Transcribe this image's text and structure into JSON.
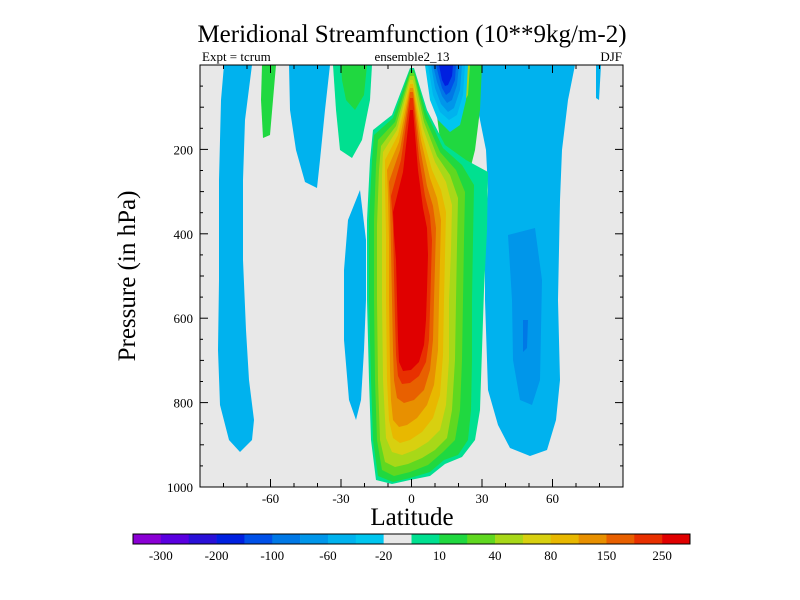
{
  "chart_data": {
    "type": "contour",
    "title": "Meridional Streamfunction (10**9kg/m-2)",
    "subtitle_left": "Expt = tcrum",
    "subtitle_center": "ensemble2_13",
    "subtitle_right": "DJF",
    "xlabel": "Latitude",
    "ylabel": "Pressure (in hPa)",
    "xlim": [
      -90,
      90
    ],
    "ylim": [
      1000,
      0
    ],
    "x_ticks": [
      -60,
      -30,
      0,
      30,
      60
    ],
    "y_ticks": [
      200,
      400,
      600,
      800,
      1000
    ],
    "colorbar": {
      "levels": [
        -300,
        -250,
        -200,
        -150,
        -100,
        -80,
        -60,
        -40,
        -20,
        -10,
        10,
        20,
        40,
        60,
        80,
        100,
        150,
        200,
        250,
        300
      ],
      "tick_labels": [
        "-300",
        "-200",
        "-100",
        "-60",
        "-20",
        "10",
        "40",
        "80",
        "150",
        "250"
      ],
      "colors": [
        "#8a00d4",
        "#5a00e0",
        "#2a10d8",
        "#0020e0",
        "#0050e8",
        "#0078e6",
        "#0096ea",
        "#00b2ee",
        "#00c6ef",
        "#e8e8e8",
        "#00e090",
        "#20d840",
        "#60d820",
        "#a8d818",
        "#d8d010",
        "#e8b800",
        "#e89000",
        "#e86000",
        "#e83000",
        "#e00000"
      ]
    },
    "background_color": "#e8e8e8",
    "features": [
      {
        "name": "southern-hadley-cell",
        "sign": "positive",
        "lat_range": [
          -12,
          28
        ],
        "pressure_range": [
          20,
          1000
        ],
        "max_value": 300,
        "max_lat": -3,
        "max_pressure": 500
      },
      {
        "name": "ferrel-cell-south",
        "sign": "negative",
        "lat_range": [
          -78,
          -68
        ],
        "pressure_range": [
          20,
          920
        ],
        "max_value": -20
      },
      {
        "name": "ferrel-cell-north",
        "sign": "negative",
        "lat_range": [
          25,
          62
        ],
        "pressure_range": [
          20,
          960
        ],
        "max_value": -40
      },
      {
        "name": "upper-negative-cell",
        "sign": "negative",
        "lat_range": [
          10,
          23
        ],
        "pressure_range": [
          20,
          110
        ],
        "max_value": -150
      }
    ]
  }
}
